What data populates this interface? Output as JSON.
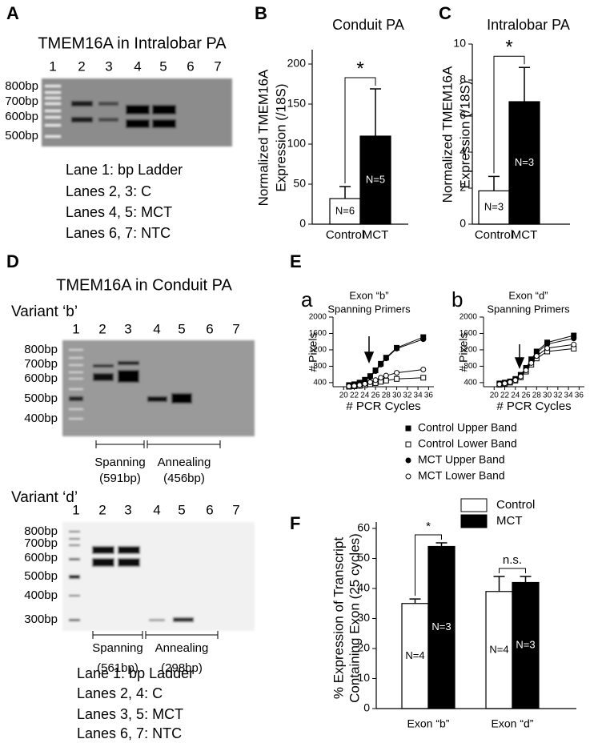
{
  "gel_a": {
    "letter": "A",
    "title": "TMEM16A in Intralobar PA",
    "lanes": [
      "1",
      "2",
      "3",
      "4",
      "5",
      "6",
      "7"
    ],
    "markers": [
      "800bp",
      "700bp",
      "600bp",
      "500bp"
    ],
    "legend": [
      "Lane 1: bp Ladder",
      "Lanes 2, 3: C",
      "Lanes 4, 5: MCT",
      "Lanes 6, 7: NTC"
    ]
  },
  "gel_d": {
    "letter": "D",
    "title": "TMEM16A in Conduit PA",
    "variant_b": {
      "label": "Variant ‘b’",
      "lanes": [
        "1",
        "2",
        "3",
        "4",
        "5",
        "6",
        "7"
      ],
      "markers": [
        "800bp",
        "700bp",
        "600bp",
        "500bp",
        "400bp"
      ],
      "groups": [
        {
          "name": "Spanning",
          "size": "(591bp)"
        },
        {
          "name": "Annealing",
          "size": "(456bp)"
        }
      ]
    },
    "variant_d": {
      "label": "Variant ‘d’",
      "lanes": [
        "1",
        "2",
        "3",
        "4",
        "5",
        "6",
        "7"
      ],
      "markers": [
        "800bp",
        "700bp",
        "600bp",
        "500bp",
        "400bp",
        "300bp"
      ],
      "groups": [
        {
          "name": "Spanning",
          "size": "(561bp)"
        },
        {
          "name": "Annealing",
          "size": "(298bp)"
        }
      ]
    },
    "legend": [
      "Lane 1: bp Ladder",
      "Lanes 2, 4: C",
      "Lanes 3, 5: MCT",
      "Lanes 6, 7: NTC"
    ]
  },
  "panel_e": {
    "letter": "E"
  },
  "chart_data": [
    {
      "type": "bar",
      "letter": "B",
      "title": "Conduit PA",
      "ylabel": [
        "Normalized TMEM16A",
        "Expression (/18S)"
      ],
      "categories": [
        "Control",
        "MCT"
      ],
      "values": [
        32,
        110
      ],
      "errors": [
        15,
        59
      ],
      "colors": [
        "#ffffff",
        "#000000"
      ],
      "n_labels": [
        "N=6",
        "N=5"
      ],
      "ylim": [
        0,
        200
      ],
      "yticks": [
        0,
        50,
        100,
        150,
        200
      ],
      "significance": "*"
    },
    {
      "type": "bar",
      "letter": "C",
      "title": "Intralobar  PA",
      "ylabel": [
        "Normalized TMEM16A",
        "Expression (/18S)"
      ],
      "categories": [
        "Control",
        "MCT"
      ],
      "values": [
        1.85,
        6.8
      ],
      "errors": [
        0.8,
        1.9
      ],
      "colors": [
        "#ffffff",
        "#000000"
      ],
      "n_labels": [
        "N=3",
        "N=3"
      ],
      "ylim": [
        0,
        10
      ],
      "yticks": [
        0,
        2,
        4,
        6,
        8,
        10
      ],
      "significance": "*"
    },
    {
      "type": "line",
      "letter": "a",
      "title": [
        "Exon “b”",
        "Spanning Primers"
      ],
      "xlabel": "# PCR Cycles",
      "ylabel": "# Pixels",
      "x": [
        21,
        22,
        23,
        24,
        25,
        26,
        27,
        28,
        30,
        35
      ],
      "series": [
        {
          "name": "Control Upper Band",
          "marker": "square",
          "filled": true,
          "color": "#000000",
          "values": [
            340,
            360,
            400,
            470,
            560,
            700,
            860,
            1010,
            1250,
            1510
          ]
        },
        {
          "name": "Control Lower Band",
          "marker": "square",
          "filled": false,
          "color": "#000000",
          "values": [
            300,
            310,
            320,
            340,
            360,
            390,
            420,
            450,
            490,
            520
          ]
        },
        {
          "name": "MCT Upper Band",
          "marker": "circle",
          "filled": true,
          "color": "#000000",
          "values": [
            330,
            350,
            390,
            450,
            540,
            680,
            840,
            990,
            1230,
            1460
          ]
        },
        {
          "name": "MCT Lower Band",
          "marker": "circle",
          "filled": false,
          "color": "#000000",
          "values": [
            310,
            320,
            340,
            370,
            410,
            460,
            520,
            570,
            640,
            720
          ]
        }
      ],
      "xlim": [
        18,
        37
      ],
      "xticks": [
        20,
        22,
        24,
        26,
        28,
        30,
        32,
        34,
        36
      ],
      "ylim": [
        300,
        2000
      ],
      "yticks": [
        400,
        800,
        1200,
        1600,
        2000
      ]
    },
    {
      "type": "line",
      "letter": "b",
      "title": [
        "Exon “d”",
        "Spanning Primers"
      ],
      "xlabel": "# PCR Cycles",
      "ylabel": "# Pixels",
      "x": [
        21,
        22,
        23,
        24,
        25,
        26,
        27,
        28,
        30,
        35
      ],
      "series": [
        {
          "name": "Control Upper Band",
          "marker": "square",
          "filled": true,
          "color": "#000000",
          "values": [
            380,
            400,
            430,
            490,
            590,
            760,
            970,
            1160,
            1380,
            1550
          ]
        },
        {
          "name": "Control Lower Band",
          "marker": "square",
          "filled": false,
          "color": "#000000",
          "values": [
            350,
            370,
            400,
            450,
            530,
            670,
            840,
            990,
            1160,
            1230
          ]
        },
        {
          "name": "MCT Upper Band",
          "marker": "circle",
          "filled": true,
          "color": "#000000",
          "values": [
            370,
            390,
            420,
            480,
            570,
            730,
            940,
            1120,
            1340,
            1480
          ]
        },
        {
          "name": "MCT Lower Band",
          "marker": "circle",
          "filled": false,
          "color": "#000000",
          "values": [
            360,
            380,
            410,
            460,
            550,
            700,
            880,
            1050,
            1240,
            1330
          ]
        }
      ],
      "xlim": [
        18,
        37
      ],
      "xticks": [
        20,
        22,
        24,
        26,
        28,
        30,
        32,
        34,
        36
      ],
      "ylim": [
        300,
        2000
      ],
      "yticks": [
        400,
        800,
        1200,
        1600,
        2000
      ]
    },
    {
      "type": "bar",
      "letter": "F",
      "ylabel": [
        "% Expression of Transcript",
        "Containing Exon (25 cycles)"
      ],
      "categories": [
        "Exon “b”",
        "Exon “d”"
      ],
      "series": [
        {
          "name": "Control",
          "color": "#ffffff",
          "values": [
            35,
            39
          ],
          "errors": [
            1.5,
            5
          ],
          "n_labels": [
            "N=4",
            "N=4"
          ]
        },
        {
          "name": "MCT",
          "color": "#000000",
          "values": [
            54,
            42
          ],
          "errors": [
            1.2,
            2
          ],
          "n_labels": [
            "N=3",
            "N=3"
          ]
        }
      ],
      "ylim": [
        0,
        60
      ],
      "yticks": [
        0,
        10,
        20,
        30,
        40,
        50,
        60
      ],
      "significance": [
        "*",
        "n.s."
      ]
    }
  ]
}
